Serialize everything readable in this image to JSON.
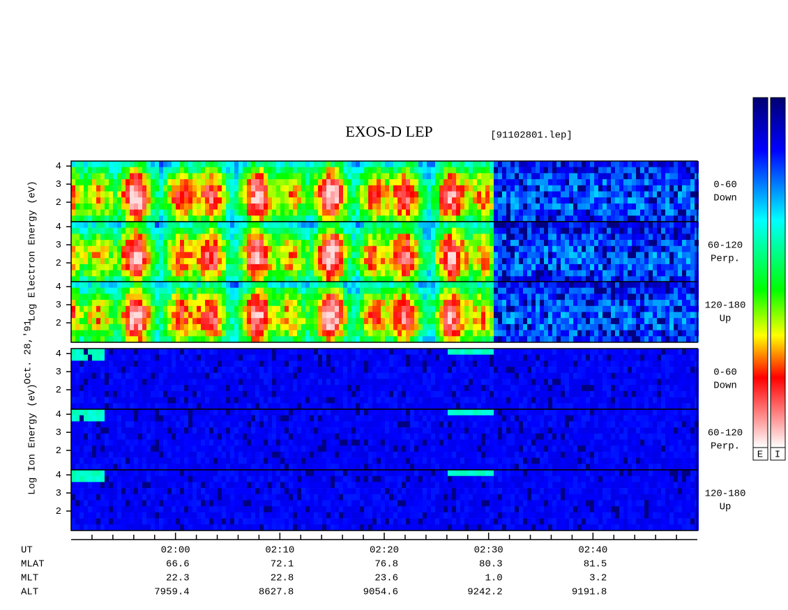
{
  "header": {
    "title": "EXOS-D LEP",
    "file": "[91102801.lep]"
  },
  "date": "Oct. 28,'91",
  "species_labels": {
    "electron": "Log  Electron  Energy  (eV)",
    "ion": "Log  Ion  Energy  (eV)"
  },
  "panels": [
    {
      "species": "electron",
      "angle": "0-60",
      "direction": "Down"
    },
    {
      "species": "electron",
      "angle": "60-120",
      "direction": "Perp."
    },
    {
      "species": "electron",
      "angle": "120-180",
      "direction": "Up"
    },
    {
      "species": "ion",
      "angle": "0-60",
      "direction": "Down"
    },
    {
      "species": "ion",
      "angle": "60-120",
      "direction": "Perp."
    },
    {
      "species": "ion",
      "angle": "120-180",
      "direction": "Up"
    }
  ],
  "energy_axis": {
    "ylim": [
      1,
      4.2
    ],
    "yticks": [
      2,
      3,
      4
    ]
  },
  "time_axis": {
    "label": "UT",
    "xlim": [
      110,
      170
    ],
    "ticks": [
      {
        "value": 120,
        "label": "02:00"
      },
      {
        "value": 130,
        "label": "02:10"
      },
      {
        "value": 140,
        "label": "02:20"
      },
      {
        "value": 150,
        "label": "02:30"
      },
      {
        "value": 160,
        "label": "02:40"
      }
    ],
    "minor_ticks": [
      112,
      114,
      116,
      118,
      122,
      124,
      126,
      128,
      132,
      134,
      136,
      138,
      142,
      144,
      146,
      148,
      152,
      154,
      156,
      158,
      162,
      164,
      166,
      168
    ]
  },
  "ephemeris": [
    {
      "label": "MLAT",
      "values": [
        "66.6",
        "72.1",
        "76.8",
        "80.3",
        "81.5"
      ]
    },
    {
      "label": "MLT",
      "values": [
        "22.3",
        "22.8",
        "23.6",
        "1.0",
        "3.2"
      ]
    },
    {
      "label": "ALT",
      "values": [
        "7959.4",
        "8627.8",
        "9054.6",
        "9242.2",
        "9191.8"
      ]
    }
  ],
  "colorbars": [
    "E",
    "I"
  ]
}
